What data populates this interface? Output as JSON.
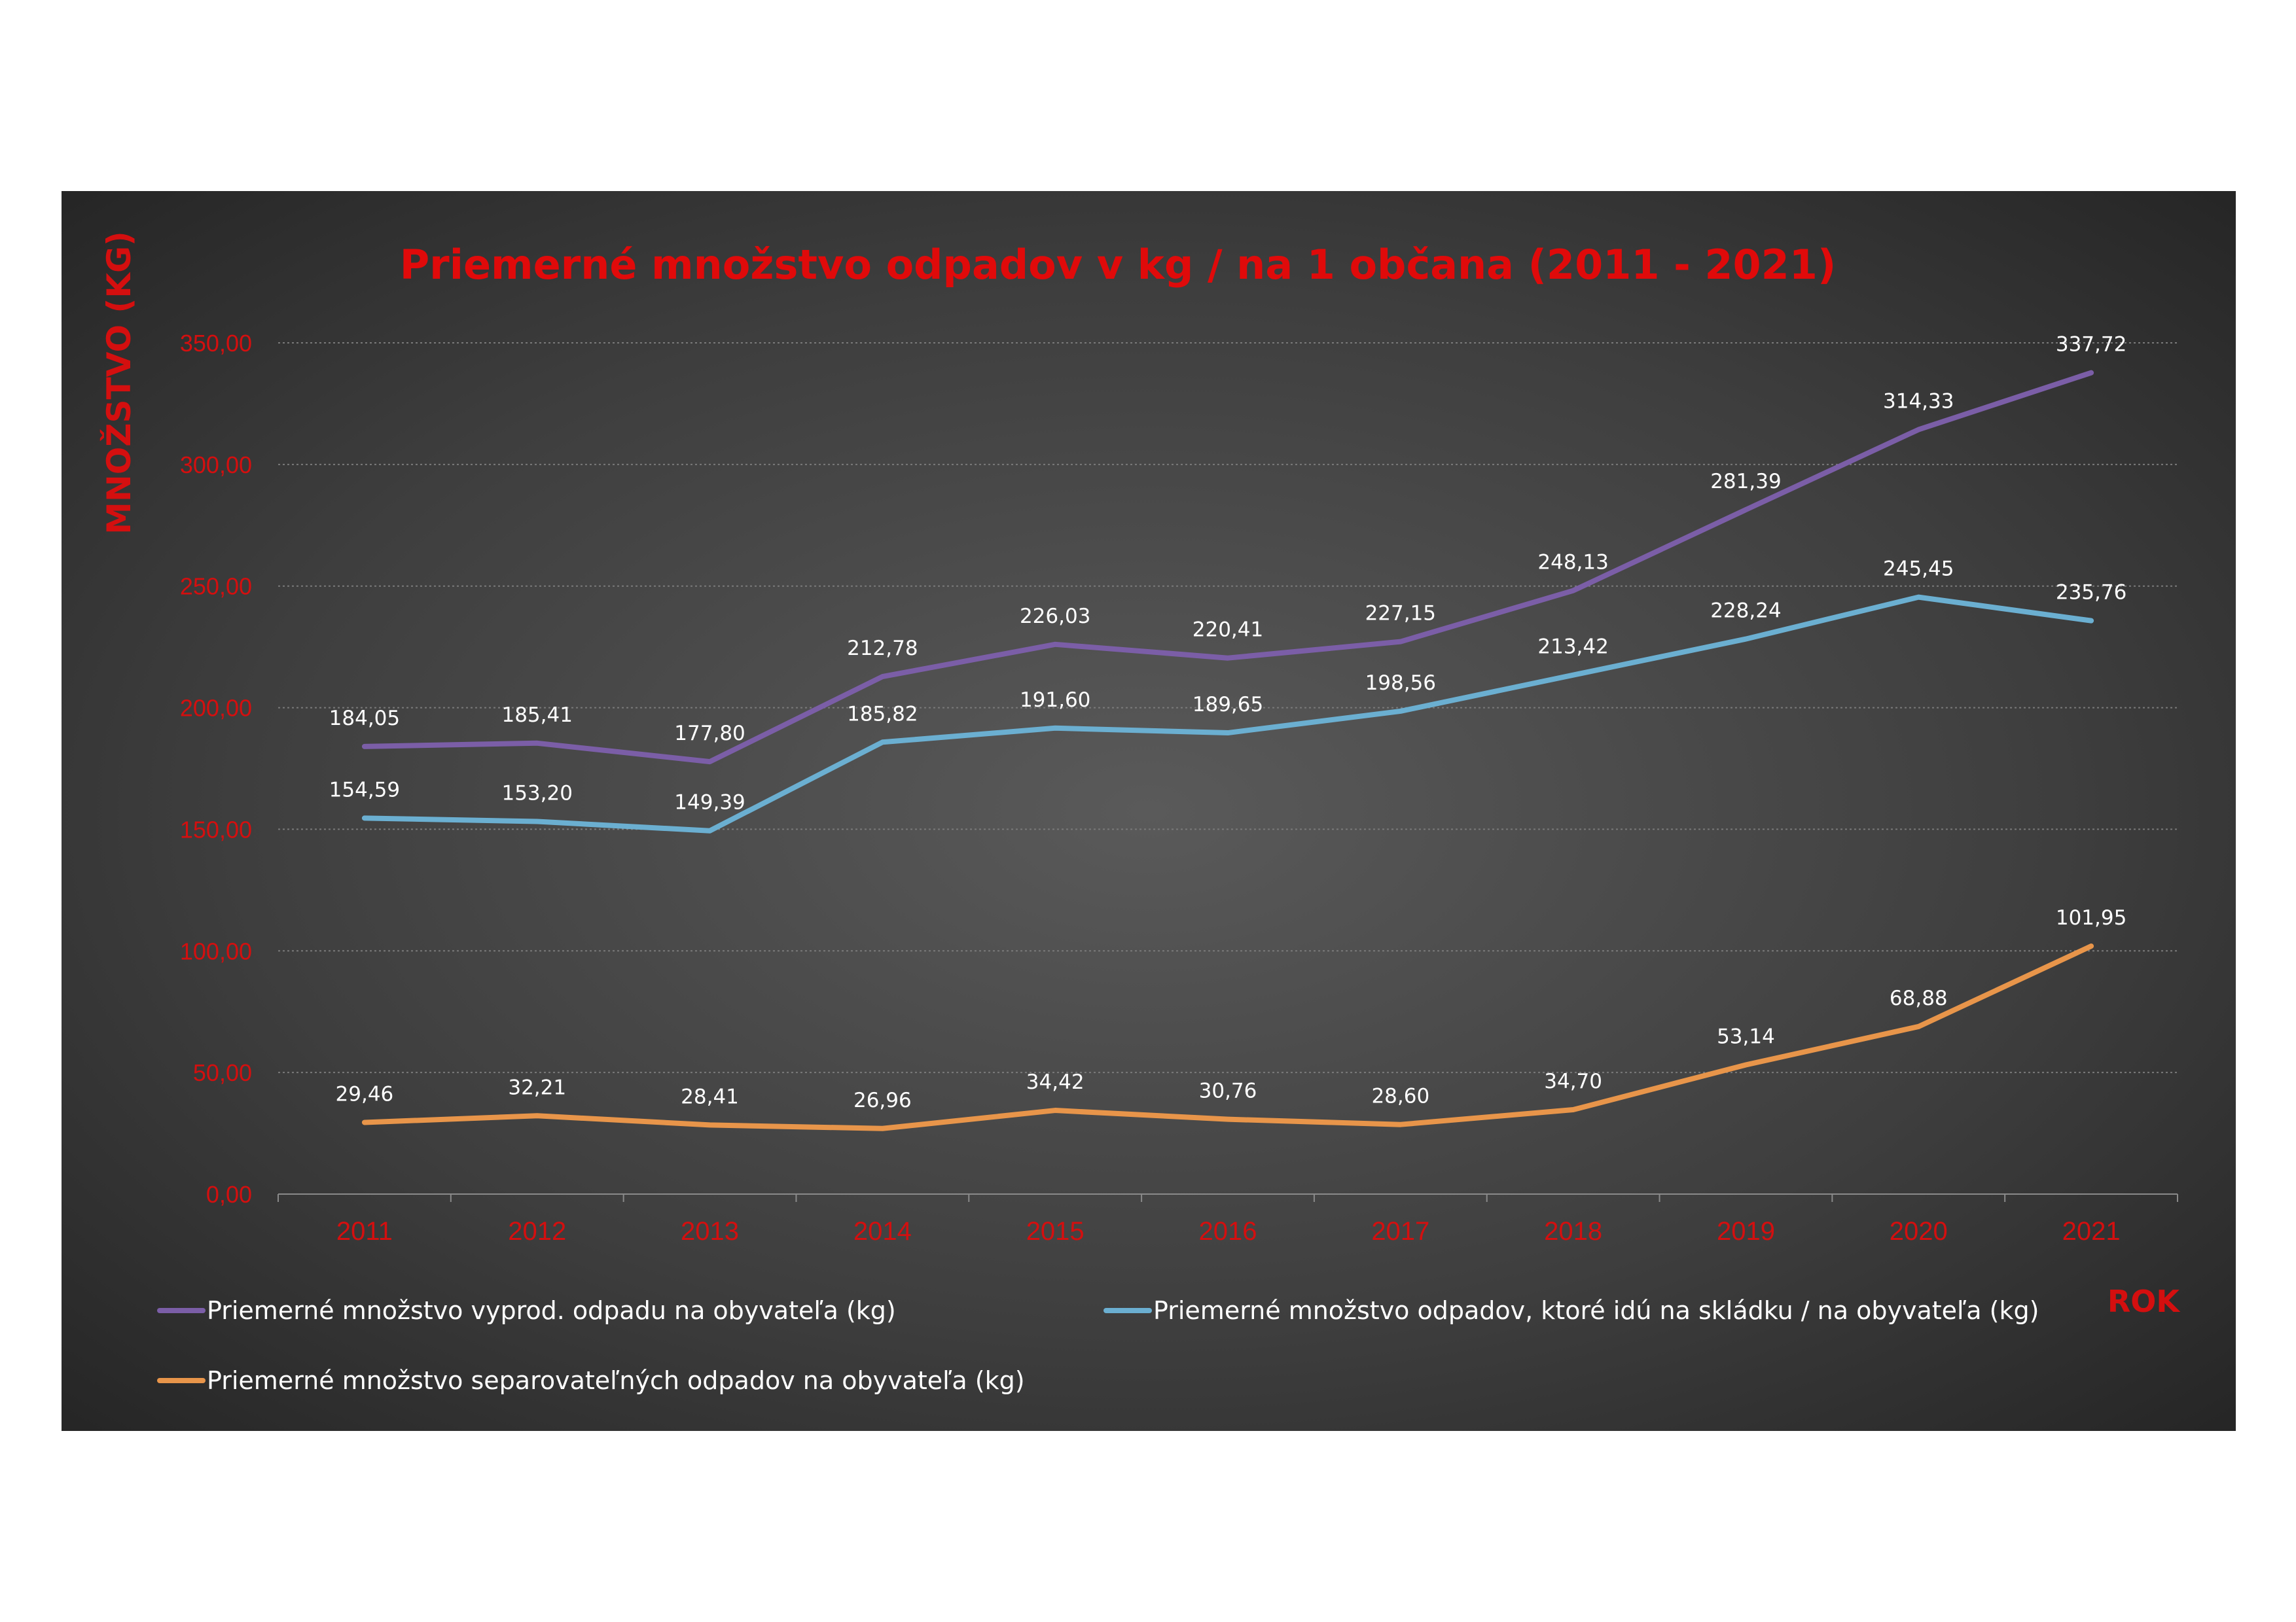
{
  "chart_data": {
    "type": "line",
    "title": "Priemerné množstvo odpadov v kg / na 1 občana (2011 - 2021)",
    "xlabel": "ROK",
    "ylabel": "MNOŽSTVO  (KG)",
    "ylim": [
      0,
      350
    ],
    "y_ticks": [
      "0,00",
      "50,00",
      "100,00",
      "150,00",
      "200,00",
      "250,00",
      "300,00",
      "350,00"
    ],
    "grid": "horizontal dotted",
    "legend_position": "bottom",
    "categories": [
      "2011",
      "2012",
      "2013",
      "2014",
      "2015",
      "2016",
      "2017",
      "2018",
      "2019",
      "2020",
      "2021"
    ],
    "series": [
      {
        "name": "Priemerné množstvo vyprod. odpadu na obyvateľa (kg)",
        "color": "#7b5ea7",
        "values": [
          184.05,
          185.41,
          177.8,
          212.78,
          226.03,
          220.41,
          227.15,
          248.13,
          281.39,
          314.33,
          337.72
        ],
        "labels": [
          "184,05",
          "185,41",
          "177,80",
          "212,78",
          "226,03",
          "220,41",
          "227,15",
          "248,13",
          "281,39",
          "314,33",
          "337,72"
        ]
      },
      {
        "name": "Priemerné množstvo odpadov, ktoré idú na skládku / na obyvateľa (kg)",
        "color": "#6bafd1",
        "values": [
          154.59,
          153.2,
          149.39,
          185.82,
          191.6,
          189.65,
          198.56,
          213.42,
          228.24,
          245.45,
          235.76
        ],
        "labels": [
          "154,59",
          "153,20",
          "149,39",
          "185,82",
          "191,60",
          "189,65",
          "198,56",
          "213,42",
          "228,24",
          "245,45",
          "235,76"
        ]
      },
      {
        "name": "Priemerné množstvo separovateľných odpadov na obyvateľa (kg)",
        "color": "#e8954a",
        "values": [
          29.46,
          32.21,
          28.41,
          26.96,
          34.42,
          30.76,
          28.6,
          34.7,
          53.14,
          68.88,
          101.95
        ],
        "labels": [
          "29,46",
          "32,21",
          "28,41",
          "26,96",
          "34,42",
          "30,76",
          "28,60",
          "34,70",
          "53,14",
          "68,88",
          "101,95"
        ]
      }
    ]
  }
}
